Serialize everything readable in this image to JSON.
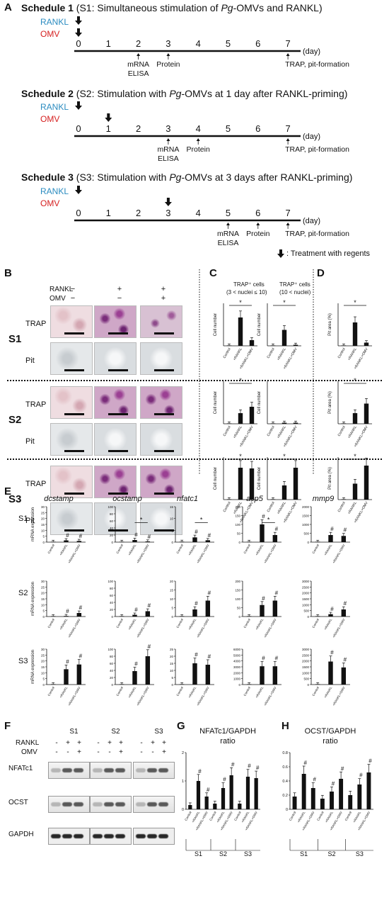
{
  "panel_letters": [
    "A",
    "B",
    "C",
    "D",
    "E",
    "F",
    "G",
    "H"
  ],
  "schedules": [
    {
      "title_pre": "Schedule 1",
      "title_text": " (S1: Simultaneous stimulation of ",
      "pg": "Pg",
      "title_post": "-OMVs and RANKL)",
      "rankl": "RANKL",
      "omv": "OMV",
      "ticks": [
        "0",
        "1",
        "2",
        "3",
        "4",
        "5",
        "6",
        "7"
      ],
      "day": "(day)",
      "markers": [
        "mRNA\nELISA",
        "Protein",
        "TRAP, pit-formation"
      ]
    },
    {
      "title_pre": "Schedule 2",
      "title_text": " (S2: Stimulation with ",
      "pg": "Pg",
      "title_post": "-OMVs at 1 day after RANKL-priming)",
      "rankl": "RANKL",
      "omv": "OMV",
      "ticks": [
        "0",
        "1",
        "2",
        "3",
        "4",
        "5",
        "6",
        "7"
      ],
      "day": "(day)",
      "markers": [
        "mRNA\nELISA",
        "Protein",
        "TRAP, pit-formation"
      ]
    },
    {
      "title_pre": "Schedule 3",
      "title_text": " (S3: Stimulation with ",
      "pg": "Pg",
      "title_post": "-OMVs at 3 days after RANKL-priming)",
      "rankl": "RANKL",
      "omv": "OMV",
      "ticks": [
        "0",
        "1",
        "2",
        "3",
        "4",
        "5",
        "6",
        "7"
      ],
      "day": "(day)",
      "markers": [
        "mRNA\nELISA",
        "Protein",
        "TRAP, pit-formation"
      ]
    }
  ],
  "treatment_legend": ": Treatment with regents",
  "panel_b": {
    "rankl": "RANKL",
    "omv": "OMV",
    "signs_rankl": [
      "−",
      "+",
      "+"
    ],
    "signs_omv": [
      "−",
      "−",
      "+"
    ],
    "rows": [
      "S1",
      "S2",
      "S3"
    ],
    "trap": "TRAP",
    "pit": "Pit"
  },
  "panel_c": {
    "head1": "TRAP⁺ cells",
    "head1b": "(3 < nuclei ≤ 10)",
    "head2": "TRAP⁺ cells",
    "head2b": "(10 < nuclei)",
    "ylabel": "Cell number"
  },
  "panel_d": {
    "ylabel": "Pit area (%)"
  },
  "categories": [
    "Control",
    "+RANKL",
    "+RANKL+OMV"
  ],
  "panel_e": {
    "genes": [
      "dcstamp",
      "ocstamp",
      "nfatc1",
      "acp5",
      "mmp9"
    ],
    "rows": [
      "S1",
      "S2",
      "S3"
    ],
    "ylabel": "mRNA expression"
  },
  "panel_f": {
    "cols": [
      "S1",
      "S2",
      "S3"
    ],
    "rankl": "RANKL",
    "omv": "OMV",
    "signs_rankl": [
      "-",
      "+",
      "+"
    ],
    "signs_omv": [
      "-",
      "-",
      "+"
    ],
    "rows": [
      "NFATc1",
      "OCST",
      "GAPDH"
    ]
  },
  "panel_g": {
    "title": "NFATc1/GAPDH",
    "title2": "ratio",
    "groups": [
      "S1",
      "S2",
      "S3"
    ]
  },
  "panel_h": {
    "title": "OCST/GAPDH",
    "title2": "ratio",
    "groups": [
      "S1",
      "S2",
      "S3"
    ]
  },
  "chart_data": [
    {
      "type": "bar",
      "panel": "C",
      "row": "S1",
      "metric": "TRAP+ cells (3 < nuclei ≤ 10)",
      "categories": [
        "Control",
        "+RANKL",
        "+RANKL+OMV"
      ],
      "values": [
        0,
        200,
        40
      ],
      "ylim": [
        0,
        300
      ]
    },
    {
      "type": "bar",
      "panel": "C",
      "row": "S1",
      "metric": "TRAP+ cells (10 < nuclei)",
      "categories": [
        "Control",
        "+RANKL",
        "+RANKL+OMV"
      ],
      "values": [
        0,
        15,
        1
      ],
      "ylim": [
        0,
        40
      ]
    },
    {
      "type": "bar",
      "panel": "D",
      "row": "S1",
      "categories": [
        "Control",
        "+RANKL",
        "+RANKL+OMV"
      ],
      "values": [
        0,
        22,
        3
      ],
      "ylim": [
        0,
        40
      ]
    },
    {
      "type": "bar",
      "panel": "C",
      "row": "S2",
      "metric": "TRAP+ cells (3 < nuclei ≤ 10)",
      "categories": [
        "Control",
        "+RANKL",
        "+RANKL+OMV"
      ],
      "values": [
        0,
        75,
        120
      ],
      "ylim": [
        0,
        300
      ]
    },
    {
      "type": "bar",
      "panel": "C",
      "row": "S2",
      "metric": "TRAP+ cells (10 < nuclei)",
      "categories": [
        "Control",
        "+RANKL",
        "+RANKL+OMV"
      ],
      "values": [
        0,
        1,
        1
      ],
      "ylim": [
        0,
        40
      ]
    },
    {
      "type": "bar",
      "panel": "D",
      "row": "S2",
      "categories": [
        "Control",
        "+RANKL",
        "+RANKL+OMV"
      ],
      "values": [
        0,
        10,
        19
      ],
      "ylim": [
        0,
        40
      ]
    },
    {
      "type": "bar",
      "panel": "C",
      "row": "S3",
      "metric": "TRAP+ cells (3 < nuclei ≤ 10)",
      "categories": [
        "Control",
        "+RANKL",
        "+RANKL+OMV"
      ],
      "values": [
        0,
        225,
        220
      ],
      "ylim": [
        0,
        300
      ]
    },
    {
      "type": "bar",
      "panel": "C",
      "row": "S3",
      "metric": "TRAP+ cells (10 < nuclei)",
      "categories": [
        "Control",
        "+RANKL",
        "+RANKL+OMV"
      ],
      "values": [
        0,
        20,
        45
      ],
      "ylim": [
        0,
        60
      ]
    },
    {
      "type": "bar",
      "panel": "D",
      "row": "S3",
      "categories": [
        "Control",
        "+RANKL",
        "+RANKL+OMV"
      ],
      "values": [
        0,
        15,
        32
      ],
      "ylim": [
        0,
        40
      ]
    },
    {
      "type": "bar",
      "panel": "E",
      "gene": "dcstamp",
      "row": "S1",
      "categories": [
        "Control",
        "+RANKL",
        "+RANKL+OMV"
      ],
      "values": [
        0.2,
        1.5,
        1
      ],
      "ticks": [
        "0",
        "5",
        "10",
        "15",
        "20",
        "25",
        "30"
      ],
      "ylim": [
        0,
        30
      ]
    },
    {
      "type": "bar",
      "panel": "E",
      "gene": "ocstamp",
      "row": "S1",
      "categories": [
        "Control",
        "+RANKL",
        "+RANKL+OMV"
      ],
      "values": [
        0.5,
        6,
        2
      ],
      "ticks": [
        "0",
        "20",
        "40",
        "60",
        "80",
        "100"
      ],
      "ylim": [
        0,
        100
      ]
    },
    {
      "type": "bar",
      "panel": "E",
      "gene": "nfatc1",
      "row": "S1",
      "categories": [
        "Control",
        "+RANKL",
        "+RANKL+OMV"
      ],
      "values": [
        0.2,
        2,
        0.8
      ],
      "ticks": [
        "0",
        "5",
        "10",
        "15"
      ],
      "ylim": [
        0,
        15
      ]
    },
    {
      "type": "bar",
      "panel": "E",
      "gene": "acp5",
      "row": "S1",
      "categories": [
        "Control",
        "+RANKL",
        "+RANKL+OMV"
      ],
      "values": [
        1,
        100,
        40
      ],
      "ticks": [
        "0",
        "50",
        "100",
        "150",
        "200"
      ],
      "ylim": [
        0,
        200
      ]
    },
    {
      "type": "bar",
      "panel": "E",
      "gene": "mmp9",
      "row": "S1",
      "categories": [
        "Control",
        "+RANKL",
        "+RANKL+OMV"
      ],
      "values": [
        10,
        400,
        350
      ],
      "ticks": [
        "0",
        "500",
        "1000",
        "1500",
        "2000"
      ],
      "ylim": [
        0,
        2000
      ]
    },
    {
      "type": "bar",
      "panel": "E",
      "gene": "dcstamp",
      "row": "S2",
      "categories": [
        "Control",
        "+RANKL",
        "+RANKL+OMV"
      ],
      "values": [
        0.2,
        0.5,
        3
      ],
      "ticks": [
        "0",
        "5",
        "10",
        "15",
        "20",
        "25",
        "30"
      ],
      "ylim": [
        0,
        30
      ]
    },
    {
      "type": "bar",
      "panel": "E",
      "gene": "ocstamp",
      "row": "S2",
      "categories": [
        "Control",
        "+RANKL",
        "+RANKL+OMV"
      ],
      "values": [
        0.5,
        5,
        15
      ],
      "ticks": [
        "0",
        "20",
        "40",
        "60",
        "80",
        "100"
      ],
      "ylim": [
        0,
        100
      ]
    },
    {
      "type": "bar",
      "panel": "E",
      "gene": "nfatc1",
      "row": "S2",
      "categories": [
        "Control",
        "+RANKL",
        "+RANKL+OMV"
      ],
      "values": [
        0.2,
        4,
        9
      ],
      "ticks": [
        "0",
        "5",
        "10",
        "15",
        "20"
      ],
      "ylim": [
        0,
        20
      ]
    },
    {
      "type": "bar",
      "panel": "E",
      "gene": "acp5",
      "row": "S2",
      "categories": [
        "Control",
        "+RANKL",
        "+RANKL+OMV"
      ],
      "values": [
        1,
        65,
        90
      ],
      "ticks": [
        "0",
        "50",
        "100",
        "150",
        "200"
      ],
      "ylim": [
        0,
        200
      ]
    },
    {
      "type": "bar",
      "panel": "E",
      "gene": "mmp9",
      "row": "S2",
      "categories": [
        "Control",
        "+RANKL",
        "+RANKL+OMV"
      ],
      "values": [
        10,
        200,
        600
      ],
      "ticks": [
        "0",
        "500",
        "1000",
        "1500",
        "2000",
        "2500",
        "3000"
      ],
      "ylim": [
        0,
        3000
      ]
    },
    {
      "type": "bar",
      "panel": "E",
      "gene": "dcstamp",
      "row": "S3",
      "categories": [
        "Control",
        "+RANKL",
        "+RANKL+OMV"
      ],
      "values": [
        0.2,
        13,
        17
      ],
      "ticks": [
        "0",
        "5",
        "10",
        "15",
        "20",
        "25",
        "30"
      ],
      "ylim": [
        0,
        30
      ]
    },
    {
      "type": "bar",
      "panel": "E",
      "gene": "ocstamp",
      "row": "S3",
      "categories": [
        "Control",
        "+RANKL",
        "+RANKL+OMV"
      ],
      "values": [
        0.5,
        38,
        80
      ],
      "ticks": [
        "0",
        "20",
        "40",
        "60",
        "80",
        "100"
      ],
      "ylim": [
        0,
        100
      ]
    },
    {
      "type": "bar",
      "panel": "E",
      "gene": "nfatc1",
      "row": "S3",
      "categories": [
        "Control",
        "+RANKL",
        "+RANKL+OMV"
      ],
      "values": [
        0.2,
        15,
        14
      ],
      "ticks": [
        "0",
        "5",
        "10",
        "15",
        "20",
        "25"
      ],
      "ylim": [
        0,
        25
      ]
    },
    {
      "type": "bar",
      "panel": "E",
      "gene": "acp5",
      "row": "S3",
      "categories": [
        "Control",
        "+RANKL",
        "+RANKL+OMV"
      ],
      "values": [
        1,
        3100,
        3100
      ],
      "ticks": [
        "0",
        "1000",
        "2000",
        "3000",
        "4000",
        "5000",
        "6000"
      ],
      "ylim": [
        0,
        6000
      ]
    },
    {
      "type": "bar",
      "panel": "E",
      "gene": "mmp9",
      "row": "S3",
      "categories": [
        "Control",
        "+RANKL",
        "+RANKL+OMV"
      ],
      "values": [
        10,
        1950,
        1450
      ],
      "ticks": [
        "0",
        "500",
        "1000",
        "1500",
        "2000",
        "2500",
        "3000"
      ],
      "ylim": [
        0,
        3000
      ]
    },
    {
      "type": "bar",
      "panel": "G",
      "categories": [
        "Control",
        "+RANKL",
        "+RANKL+OMV",
        "Control",
        "+RANKL",
        "+RANKL+OMV",
        "Control",
        "+RANKL",
        "+RANKL+OMV"
      ],
      "values": [
        0.15,
        1.0,
        0.45,
        0.2,
        0.75,
        1.2,
        0.2,
        1.15,
        1.1
      ],
      "ticks": [
        "0",
        "1",
        "2"
      ],
      "ylim": [
        0,
        2
      ]
    },
    {
      "type": "bar",
      "panel": "H",
      "categories": [
        "Control",
        "+RANKL",
        "+RANKL+OMV",
        "Control",
        "+RANKL",
        "+RANKL+OMV",
        "Control",
        "+RANKL",
        "+RANKL+OMV"
      ],
      "values": [
        0.18,
        0.5,
        0.3,
        0.15,
        0.25,
        0.43,
        0.2,
        0.35,
        0.52
      ],
      "ticks": [
        "0",
        "0.2",
        "0.4",
        "0.6",
        "0.8"
      ],
      "ylim": [
        0,
        0.8
      ]
    }
  ]
}
